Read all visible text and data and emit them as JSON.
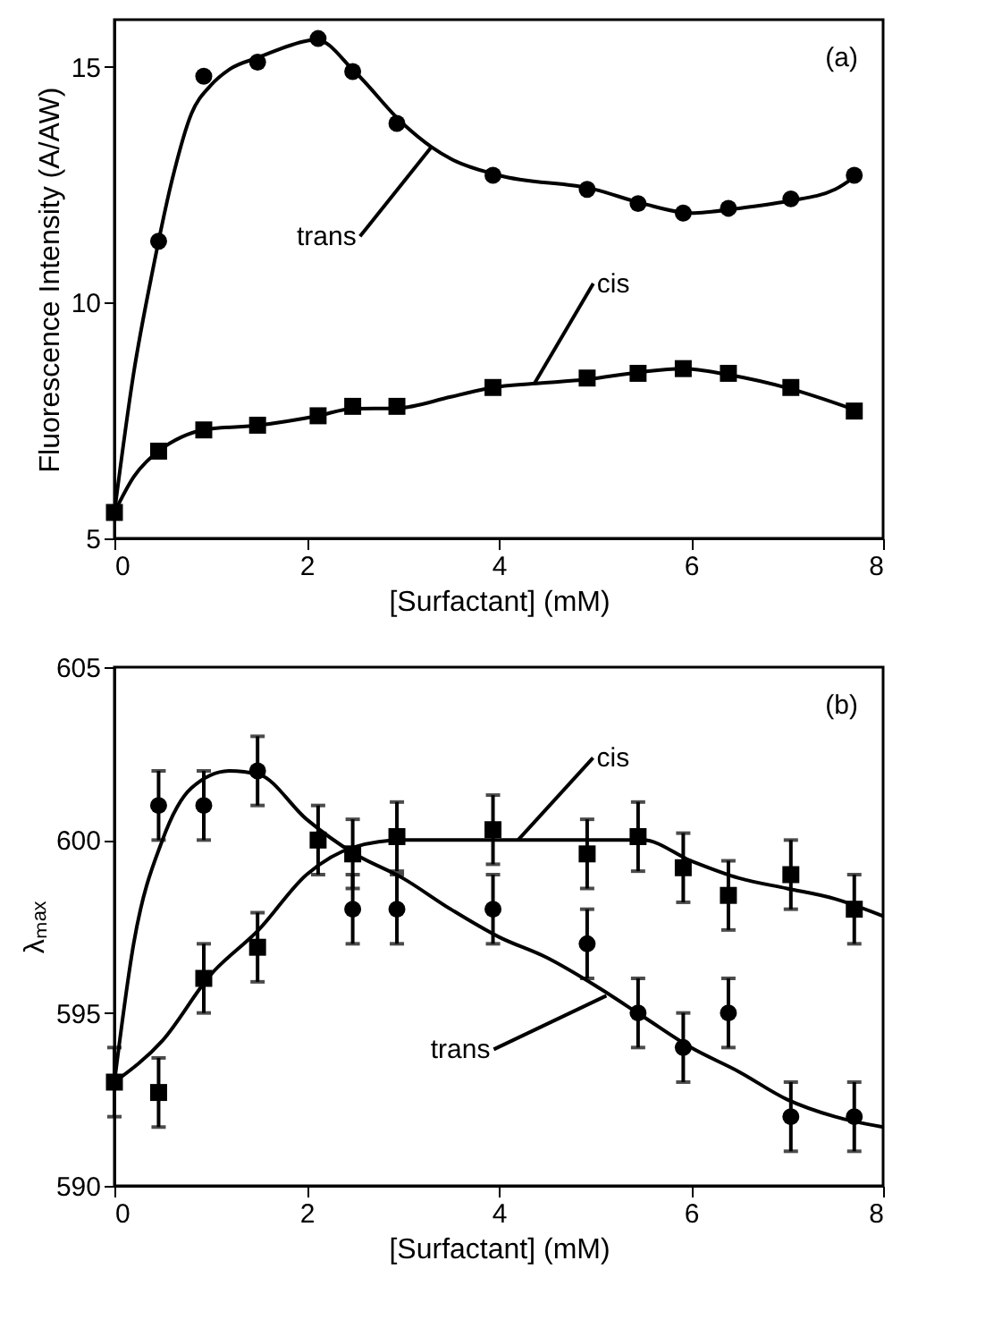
{
  "chart_data": [
    {
      "type": "scatter",
      "xlabel": "[Surfactant] (mM)",
      "ylabel": "Fluorescence Intensity (A/AW)",
      "xlim": [
        0,
        8
      ],
      "xticks": [
        0,
        2,
        4,
        6,
        8
      ],
      "ylim": [
        5,
        16
      ],
      "yticks": [
        5,
        10,
        15
      ],
      "grid": false,
      "annotations": [
        "(a)",
        {
          "text": "trans",
          "x": 3.3,
          "y": 13.3
        },
        {
          "text": "cis",
          "x": 4.37,
          "y": 8.28
        }
      ],
      "series": [
        {
          "type": "line",
          "marker": "none",
          "line_style": "solid",
          "color": "#000000",
          "x": [
            0,
            0.2,
            0.4,
            0.6,
            0.8,
            1.0,
            1.2,
            1.5,
            2.0,
            2.1,
            2.5,
            3.0,
            3.3,
            3.5,
            4.0,
            5.0,
            5.5,
            6.0,
            6.5,
            7.0,
            7.5,
            7.7
          ],
          "values": [
            5.55,
            8.5,
            10.7,
            12.6,
            14.0,
            14.6,
            14.95,
            15.2,
            15.55,
            15.58,
            14.9,
            13.8,
            13.3,
            13.05,
            12.7,
            12.4,
            12.1,
            11.9,
            12.0,
            12.15,
            12.4,
            12.66
          ]
        },
        {
          "type": "line",
          "marker": "none",
          "line_style": "solid",
          "color": "#000000",
          "x": [
            0,
            0.2,
            0.46,
            0.7,
            0.93,
            1.5,
            2.12,
            2.48,
            2.94,
            3.5,
            3.94,
            4.35,
            4.92,
            5.45,
            5.92,
            6.39,
            7.04,
            7.7
          ],
          "values": [
            5.55,
            6.3,
            6.85,
            7.15,
            7.3,
            7.4,
            7.6,
            7.75,
            7.76,
            8.0,
            8.2,
            8.28,
            8.37,
            8.52,
            8.6,
            8.47,
            8.17,
            7.73
          ]
        },
        {
          "marker": "circle",
          "color": "#000000",
          "x": [
            0.46,
            0.93,
            1.49,
            2.12,
            2.48,
            2.94,
            3.94,
            4.92,
            5.45,
            5.92,
            6.39,
            7.04,
            7.7
          ],
          "values": [
            11.3,
            14.8,
            15.1,
            15.6,
            14.9,
            13.8,
            12.7,
            12.4,
            12.1,
            11.9,
            12.0,
            12.2,
            12.7
          ]
        },
        {
          "marker": "square",
          "color": "#000000",
          "x": [
            0,
            0.46,
            0.93,
            1.49,
            2.12,
            2.48,
            2.94,
            3.94,
            4.92,
            5.45,
            5.92,
            6.39,
            7.04,
            7.7
          ],
          "values": [
            5.55,
            6.85,
            7.3,
            7.4,
            7.6,
            7.8,
            7.8,
            8.2,
            8.4,
            8.5,
            8.6,
            8.5,
            8.2,
            7.7
          ]
        }
      ]
    },
    {
      "type": "scatter",
      "xlabel": "[Surfactant] (mM)",
      "ylabel": "λₘₐₓ",
      "xlim": [
        0,
        8
      ],
      "xticks": [
        0,
        2,
        4,
        6,
        8
      ],
      "ylim": [
        590,
        605
      ],
      "yticks": [
        590,
        595,
        600,
        605
      ],
      "grid": false,
      "annotations": [
        "(b)",
        {
          "text": "cis",
          "x": 4.2,
          "y": 600
        },
        {
          "text": "trans",
          "x": 5.12,
          "y": 595.5
        }
      ],
      "series": [
        {
          "type": "line",
          "marker": "none",
          "line_style": "solid",
          "color": "#000000",
          "x": [
            0,
            0.2,
            0.5,
            0.8,
            1.2,
            1.5,
            2.0,
            2.5,
            3.0,
            3.5,
            4.0,
            4.5,
            5.0,
            5.5,
            6.0,
            6.5,
            7.0,
            7.5,
            8.0
          ],
          "values": [
            593,
            597,
            600,
            601.5,
            602.0,
            601.9,
            600.6,
            599.6,
            598.9,
            598.0,
            597.2,
            596.6,
            595.8,
            594.9,
            594.0,
            593.3,
            592.5,
            592.0,
            591.7
          ]
        },
        {
          "type": "line",
          "marker": "none",
          "line_style": "solid",
          "color": "#000000",
          "x": [
            0,
            0.5,
            1.0,
            1.5,
            2.0,
            2.5,
            3.0,
            4.0,
            5.0,
            5.5,
            6.0,
            6.5,
            7.0,
            7.5,
            8.0
          ],
          "values": [
            593,
            594.2,
            596.1,
            597.4,
            599.0,
            599.8,
            600.0,
            600.0,
            600.0,
            600.0,
            599.4,
            598.9,
            598.6,
            598.3,
            597.8
          ]
        },
        {
          "marker": "circle",
          "color": "#000000",
          "x": [
            0.46,
            0.93,
            1.49,
            2.48,
            2.94,
            3.94,
            4.92,
            5.45,
            5.92,
            6.39,
            7.04,
            7.7
          ],
          "values": [
            601,
            601,
            602,
            598,
            598,
            598,
            597,
            595,
            594,
            595,
            592,
            592
          ],
          "errors": [
            1,
            1,
            1,
            1,
            1,
            1,
            1,
            1,
            1,
            1,
            1,
            1
          ]
        },
        {
          "marker": "square",
          "color": "#000000",
          "x": [
            0,
            0.46,
            0.93,
            1.49,
            2.12,
            2.48,
            2.94,
            3.94,
            4.92,
            5.45,
            5.92,
            6.39,
            7.04,
            7.7
          ],
          "values": [
            593,
            592.7,
            596.0,
            596.9,
            600.0,
            599.6,
            600.1,
            600.3,
            599.6,
            600.1,
            599.2,
            598.4,
            599.0,
            598.0
          ],
          "errors": [
            1,
            1,
            1,
            1,
            1,
            1,
            1,
            1,
            1,
            1,
            1,
            1,
            1,
            1
          ]
        }
      ]
    }
  ]
}
